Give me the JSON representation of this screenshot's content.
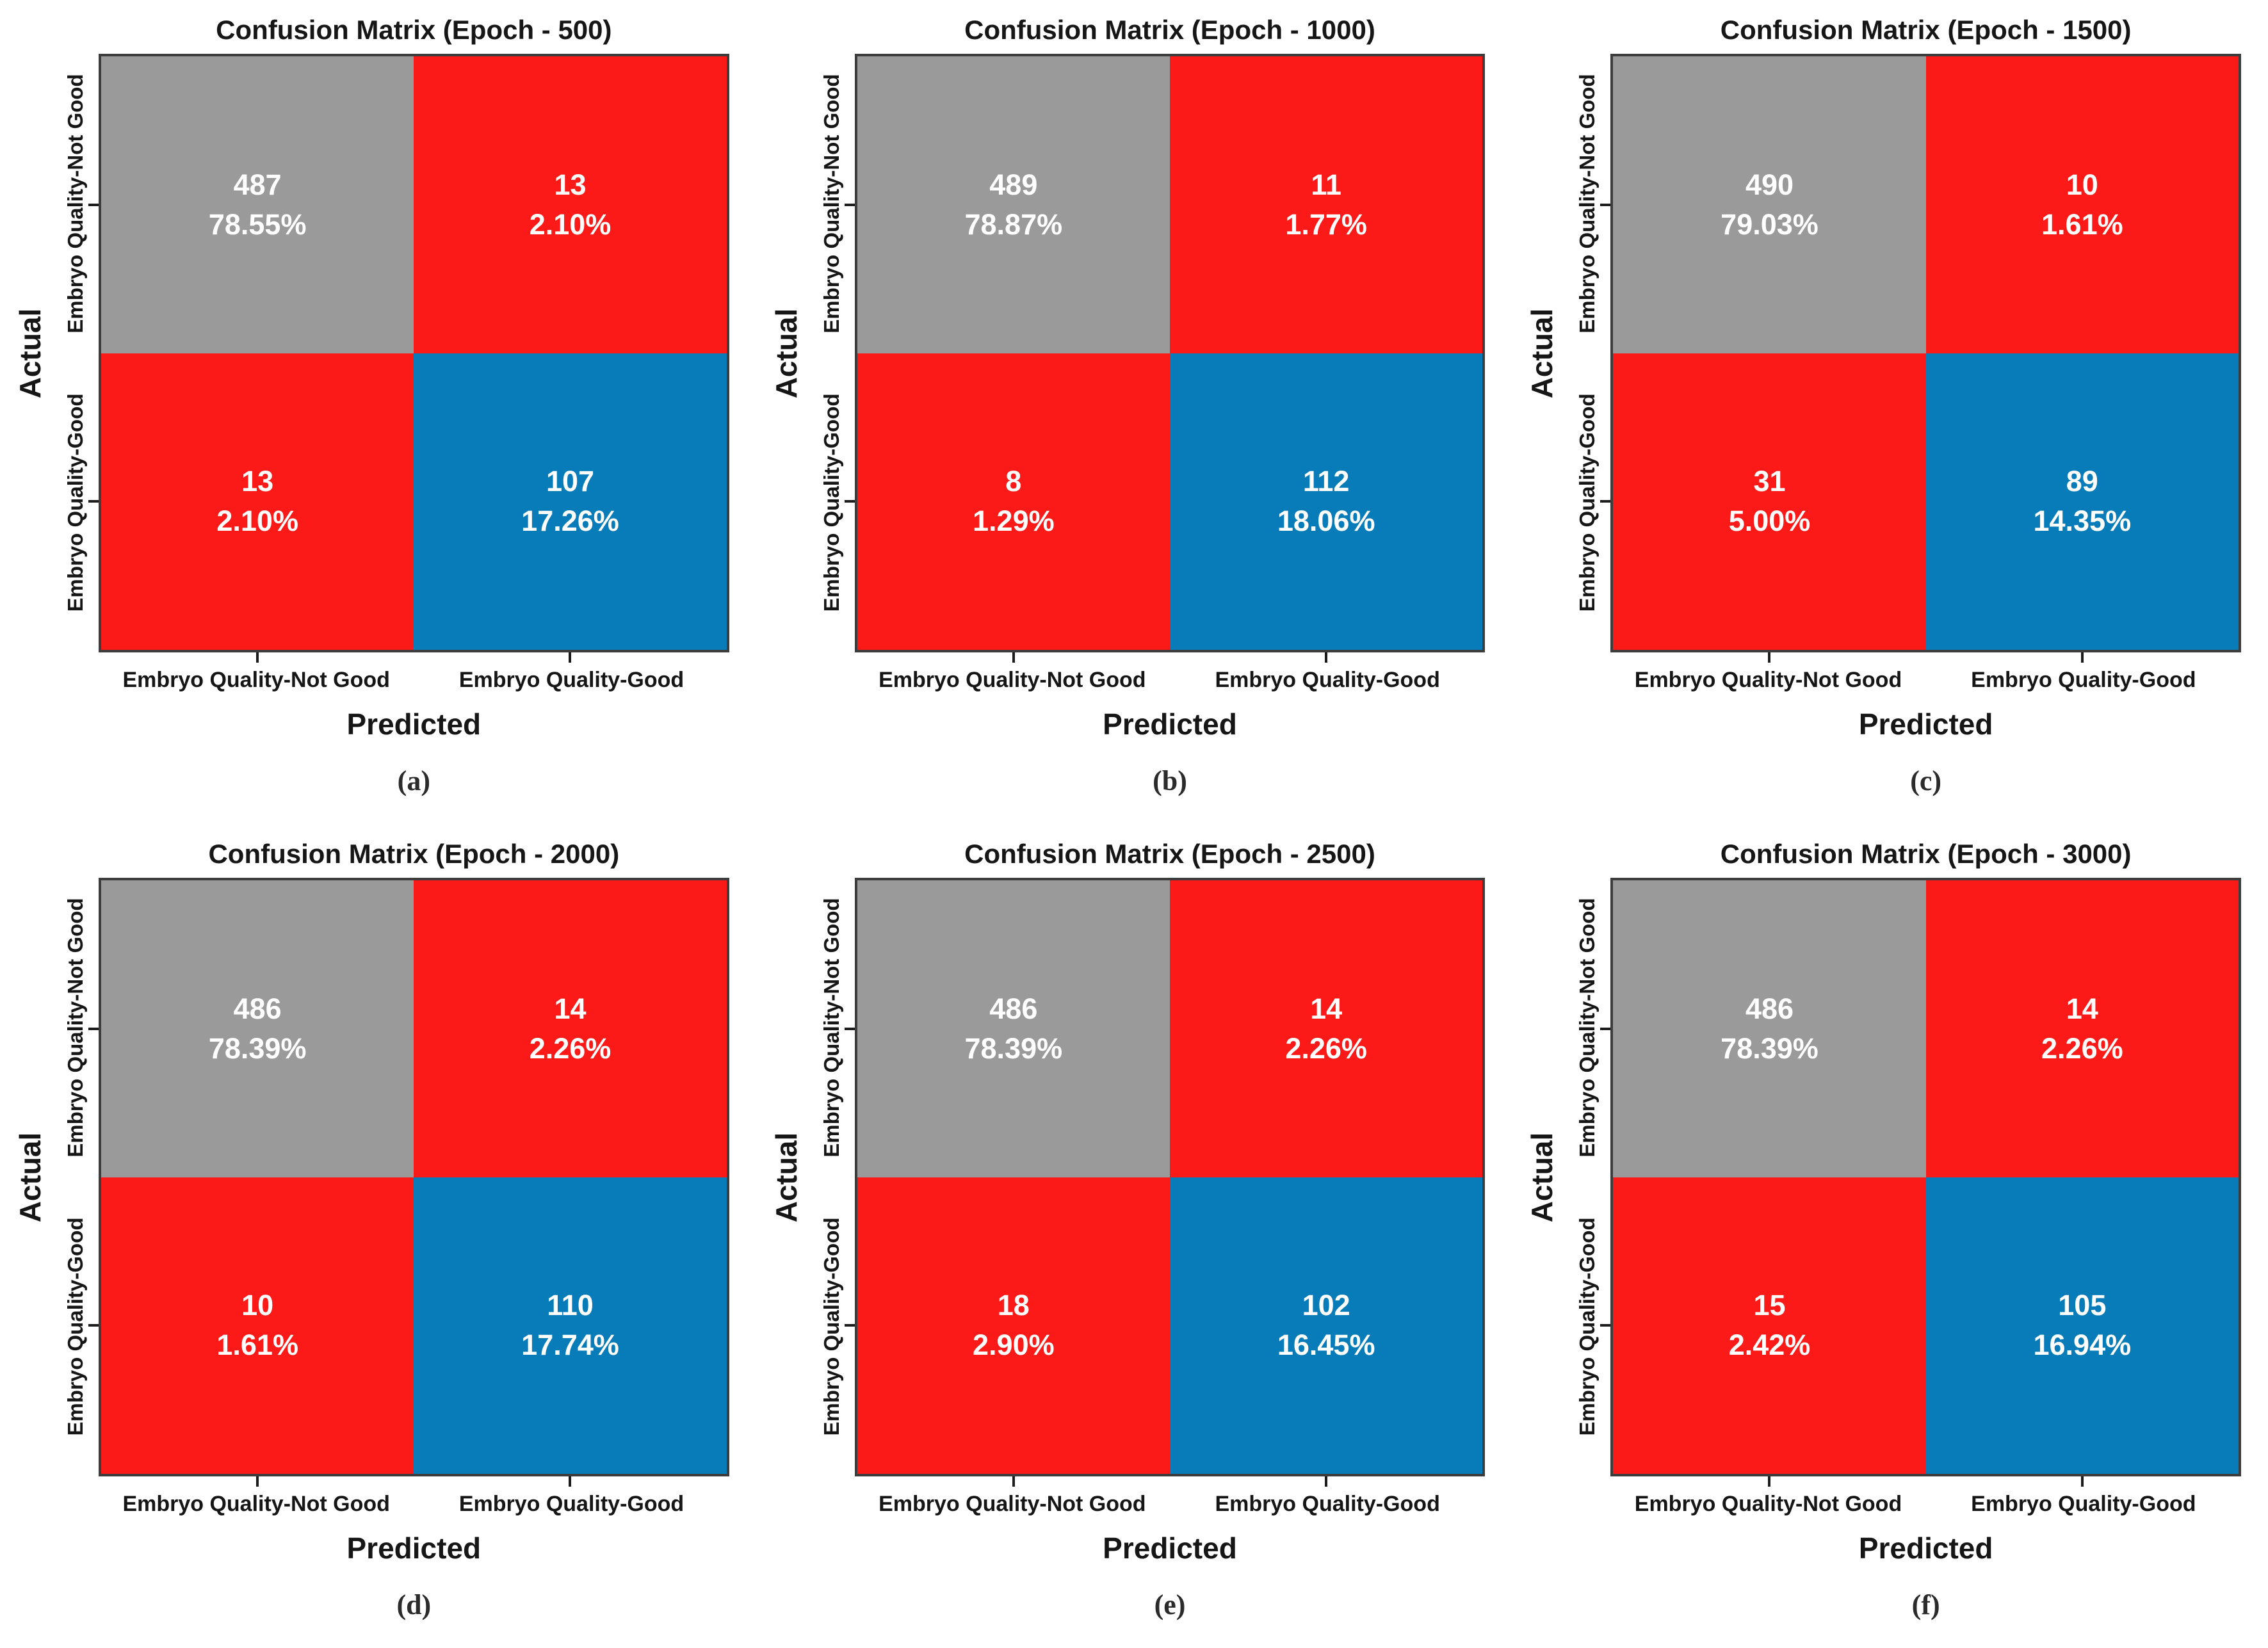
{
  "figure": {
    "ylabel": "Actual",
    "xlabel": "Predicted",
    "row_labels": [
      "Embryo Quality-Not Good",
      "Embryo Quality-Good"
    ],
    "col_labels": [
      "Embryo Quality-Not Good",
      "Embryo Quality-Good"
    ],
    "colors": {
      "correct_not_good_cell": "#9a9a9a",
      "misclassified_cell": "#fb1a17",
      "correct_good_cell": "#087cb9",
      "cell_text": "#ffffff",
      "axis_text": "#161616"
    },
    "cell_colors": [
      [
        "#9a9a9a",
        "#fb1a17"
      ],
      [
        "#fb1a17",
        "#087cb9"
      ]
    ]
  },
  "panels": [
    {
      "caption": "(a)",
      "title": "Confusion Matrix (Epoch - 500)",
      "cells": [
        {
          "count": "487",
          "pct": "78.55%"
        },
        {
          "count": "13",
          "pct": "2.10%"
        },
        {
          "count": "13",
          "pct": "2.10%"
        },
        {
          "count": "107",
          "pct": "17.26%"
        }
      ]
    },
    {
      "caption": "(b)",
      "title": "Confusion Matrix (Epoch - 1000)",
      "cells": [
        {
          "count": "489",
          "pct": "78.87%"
        },
        {
          "count": "11",
          "pct": "1.77%"
        },
        {
          "count": "8",
          "pct": "1.29%"
        },
        {
          "count": "112",
          "pct": "18.06%"
        }
      ]
    },
    {
      "caption": "(c)",
      "title": "Confusion Matrix (Epoch - 1500)",
      "cells": [
        {
          "count": "490",
          "pct": "79.03%"
        },
        {
          "count": "10",
          "pct": "1.61%"
        },
        {
          "count": "31",
          "pct": "5.00%"
        },
        {
          "count": "89",
          "pct": "14.35%"
        }
      ]
    },
    {
      "caption": "(d)",
      "title": "Confusion Matrix (Epoch - 2000)",
      "cells": [
        {
          "count": "486",
          "pct": "78.39%"
        },
        {
          "count": "14",
          "pct": "2.26%"
        },
        {
          "count": "10",
          "pct": "1.61%"
        },
        {
          "count": "110",
          "pct": "17.74%"
        }
      ]
    },
    {
      "caption": "(e)",
      "title": "Confusion Matrix (Epoch - 2500)",
      "cells": [
        {
          "count": "486",
          "pct": "78.39%"
        },
        {
          "count": "14",
          "pct": "2.26%"
        },
        {
          "count": "18",
          "pct": "2.90%"
        },
        {
          "count": "102",
          "pct": "16.45%"
        }
      ]
    },
    {
      "caption": "(f)",
      "title": "Confusion Matrix (Epoch - 3000)",
      "cells": [
        {
          "count": "486",
          "pct": "78.39%"
        },
        {
          "count": "14",
          "pct": "2.26%"
        },
        {
          "count": "15",
          "pct": "2.42%"
        },
        {
          "count": "105",
          "pct": "16.94%"
        }
      ]
    }
  ],
  "chart_data": [
    {
      "type": "heatmap",
      "title": "Confusion Matrix (Epoch - 500)",
      "caption": "(a)",
      "epoch": 500,
      "xlabel": "Predicted",
      "ylabel": "Actual",
      "x_categories": [
        "Embryo Quality-Not Good",
        "Embryo Quality-Good"
      ],
      "y_categories": [
        "Embryo Quality-Not Good",
        "Embryo Quality-Good"
      ],
      "matrix_counts": [
        [
          487,
          13
        ],
        [
          13,
          107
        ]
      ],
      "matrix_percent": [
        [
          78.55,
          2.1
        ],
        [
          2.1,
          17.26
        ]
      ],
      "cell_colors": [
        [
          "#9a9a9a",
          "#fb1a17"
        ],
        [
          "#fb1a17",
          "#087cb9"
        ]
      ]
    },
    {
      "type": "heatmap",
      "title": "Confusion Matrix (Epoch - 1000)",
      "caption": "(b)",
      "epoch": 1000,
      "xlabel": "Predicted",
      "ylabel": "Actual",
      "x_categories": [
        "Embryo Quality-Not Good",
        "Embryo Quality-Good"
      ],
      "y_categories": [
        "Embryo Quality-Not Good",
        "Embryo Quality-Good"
      ],
      "matrix_counts": [
        [
          489,
          11
        ],
        [
          8,
          112
        ]
      ],
      "matrix_percent": [
        [
          78.87,
          1.77
        ],
        [
          1.29,
          18.06
        ]
      ],
      "cell_colors": [
        [
          "#9a9a9a",
          "#fb1a17"
        ],
        [
          "#fb1a17",
          "#087cb9"
        ]
      ]
    },
    {
      "type": "heatmap",
      "title": "Confusion Matrix (Epoch - 1500)",
      "caption": "(c)",
      "epoch": 1500,
      "xlabel": "Predicted",
      "ylabel": "Actual",
      "x_categories": [
        "Embryo Quality-Not Good",
        "Embryo Quality-Good"
      ],
      "y_categories": [
        "Embryo Quality-Not Good",
        "Embryo Quality-Good"
      ],
      "matrix_counts": [
        [
          490,
          10
        ],
        [
          31,
          89
        ]
      ],
      "matrix_percent": [
        [
          79.03,
          1.61
        ],
        [
          5.0,
          14.35
        ]
      ],
      "cell_colors": [
        [
          "#9a9a9a",
          "#fb1a17"
        ],
        [
          "#fb1a17",
          "#087cb9"
        ]
      ]
    },
    {
      "type": "heatmap",
      "title": "Confusion Matrix (Epoch - 2000)",
      "caption": "(d)",
      "epoch": 2000,
      "xlabel": "Predicted",
      "ylabel": "Actual",
      "x_categories": [
        "Embryo Quality-Not Good",
        "Embryo Quality-Good"
      ],
      "y_categories": [
        "Embryo Quality-Not Good",
        "Embryo Quality-Good"
      ],
      "matrix_counts": [
        [
          486,
          14
        ],
        [
          10,
          110
        ]
      ],
      "matrix_percent": [
        [
          78.39,
          2.26
        ],
        [
          1.61,
          17.74
        ]
      ],
      "cell_colors": [
        [
          "#9a9a9a",
          "#fb1a17"
        ],
        [
          "#fb1a17",
          "#087cb9"
        ]
      ]
    },
    {
      "type": "heatmap",
      "title": "Confusion Matrix (Epoch - 2500)",
      "caption": "(e)",
      "epoch": 2500,
      "xlabel": "Predicted",
      "ylabel": "Actual",
      "x_categories": [
        "Embryo Quality-Not Good",
        "Embryo Quality-Good"
      ],
      "y_categories": [
        "Embryo Quality-Not Good",
        "Embryo Quality-Good"
      ],
      "matrix_counts": [
        [
          486,
          14
        ],
        [
          18,
          102
        ]
      ],
      "matrix_percent": [
        [
          78.39,
          2.26
        ],
        [
          2.9,
          16.45
        ]
      ],
      "cell_colors": [
        [
          "#9a9a9a",
          "#fb1a17"
        ],
        [
          "#fb1a17",
          "#087cb9"
        ]
      ]
    },
    {
      "type": "heatmap",
      "title": "Confusion Matrix (Epoch - 3000)",
      "caption": "(f)",
      "epoch": 3000,
      "xlabel": "Predicted",
      "ylabel": "Actual",
      "x_categories": [
        "Embryo Quality-Not Good",
        "Embryo Quality-Good"
      ],
      "y_categories": [
        "Embryo Quality-Not Good",
        "Embryo Quality-Good"
      ],
      "matrix_counts": [
        [
          486,
          14
        ],
        [
          15,
          105
        ]
      ],
      "matrix_percent": [
        [
          78.39,
          2.26
        ],
        [
          2.42,
          16.94
        ]
      ],
      "cell_colors": [
        [
          "#9a9a9a",
          "#fb1a17"
        ],
        [
          "#fb1a17",
          "#087cb9"
        ]
      ]
    }
  ]
}
